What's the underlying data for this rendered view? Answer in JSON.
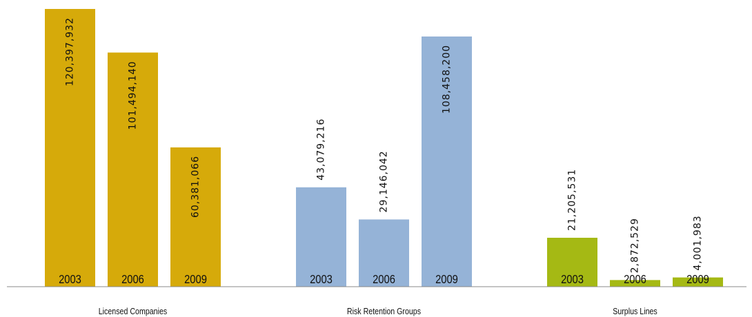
{
  "chart_data": {
    "type": "bar",
    "groups": [
      {
        "name": "Licensed Companies",
        "color": "#d6aa0a",
        "bars": [
          {
            "year": "2003",
            "value": 120397932,
            "label": "120,397,932"
          },
          {
            "year": "2006",
            "value": 101494140,
            "label": "101,494,140"
          },
          {
            "year": "2009",
            "value": 60381066,
            "label": "60,381,066"
          }
        ]
      },
      {
        "name": "Risk Retention Groups",
        "color": "#95b3d7",
        "bars": [
          {
            "year": "2003",
            "value": 43079216,
            "label": "43,079,216"
          },
          {
            "year": "2006",
            "value": 29146042,
            "label": "29,146,042"
          },
          {
            "year": "2009",
            "value": 108458200,
            "label": "108,458,200"
          }
        ]
      },
      {
        "name": "Surplus Lines",
        "color": "#a5b914",
        "bars": [
          {
            "year": "2003",
            "value": 21205531,
            "label": "21,205,531"
          },
          {
            "year": "2006",
            "value": 2872529,
            "label": "2,872,529"
          },
          {
            "year": "2009",
            "value": 4001983,
            "label": "4,001,983"
          }
        ]
      }
    ],
    "ylim": [
      0,
      120397932
    ]
  }
}
